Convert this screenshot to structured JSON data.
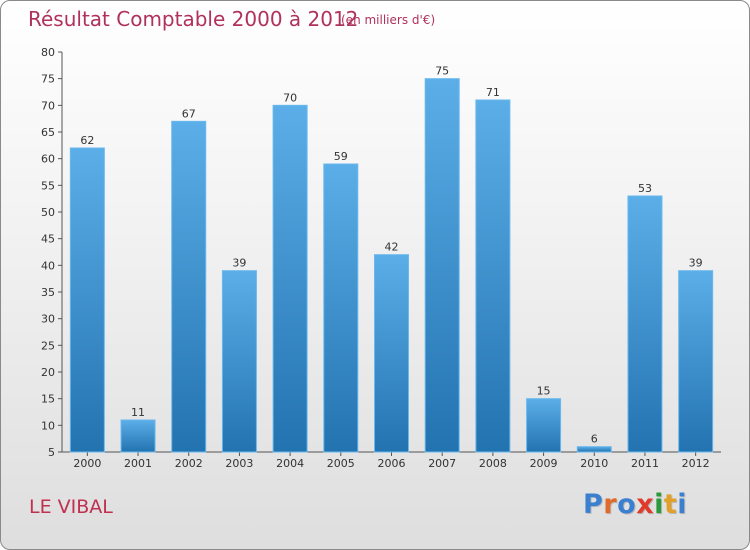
{
  "title": "Résultat Comptable 2000 à 2012",
  "subtitle": "(en milliers d'€)",
  "commune": "LE VIBAL",
  "logo": {
    "text": "Proxiti",
    "colors": [
      "#3a7fd0",
      "#e06a2a",
      "#3a7fd0",
      "#e03a2a",
      "#2a9a3a",
      "#e0a02a",
      "#3a7fd0"
    ]
  },
  "colors": {
    "bar_top": "#5caee8",
    "bar_bottom": "#2273b0",
    "title": "#b0315c"
  },
  "chart_data": {
    "type": "bar",
    "title": "Résultat Comptable 2000 à 2012",
    "subtitle": "(en milliers d'€)",
    "xlabel": "",
    "ylabel": "",
    "ylim": [
      5,
      80
    ],
    "yticks": [
      5,
      10,
      15,
      20,
      25,
      30,
      35,
      40,
      45,
      50,
      55,
      60,
      65,
      70,
      75,
      80
    ],
    "grid": false,
    "categories": [
      "2000",
      "2001",
      "2002",
      "2003",
      "2004",
      "2005",
      "2006",
      "2007",
      "2008",
      "2009",
      "2010",
      "2011",
      "2012"
    ],
    "values": [
      62,
      11,
      67,
      39,
      70,
      59,
      42,
      75,
      71,
      15,
      6,
      53,
      39
    ]
  }
}
